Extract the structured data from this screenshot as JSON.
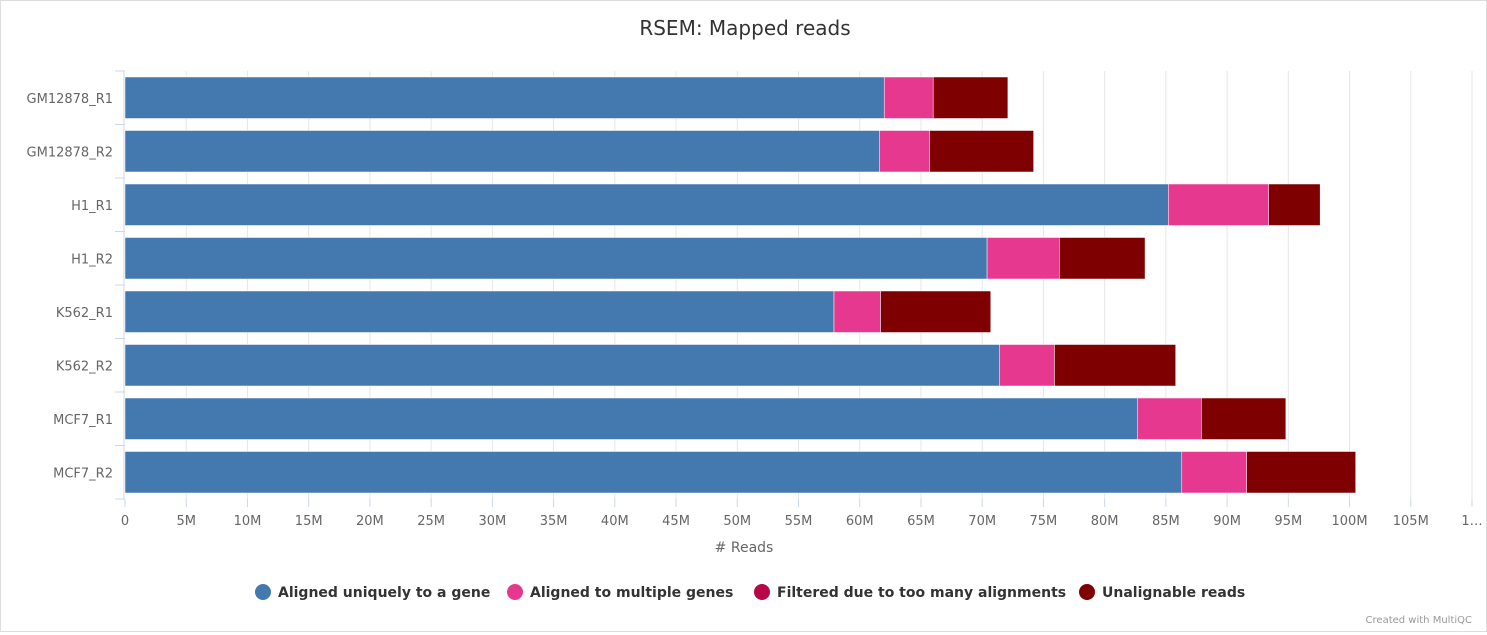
{
  "chart_data": {
    "type": "bar",
    "orientation": "horizontal",
    "stacked": true,
    "title": "RSEM: Mapped reads",
    "xlabel": "# Reads",
    "xlim": [
      0,
      110000000
    ],
    "x_ticks": [
      "0",
      "5M",
      "10M",
      "15M",
      "20M",
      "25M",
      "30M",
      "35M",
      "40M",
      "45M",
      "50M",
      "55M",
      "60M",
      "65M",
      "70M",
      "75M",
      "80M",
      "85M",
      "90M",
      "95M",
      "100M",
      "105M",
      "1…"
    ],
    "categories": [
      "GM12878_R1",
      "GM12878_R2",
      "H1_R1",
      "H1_R2",
      "K562_R1",
      "K562_R2",
      "MCF7_R1",
      "MCF7_R2"
    ],
    "series": [
      {
        "name": "Aligned uniquely to a gene",
        "color": "#4479b0",
        "values": [
          62000000,
          61600000,
          85200000,
          70400000,
          57900000,
          71400000,
          82700000,
          86300000
        ]
      },
      {
        "name": "Aligned to multiple genes",
        "color": "#e7388f",
        "values": [
          4000000,
          4100000,
          8200000,
          5900000,
          3800000,
          4500000,
          5200000,
          5300000
        ]
      },
      {
        "name": "Filtered due to too many alignments",
        "color": "#b8064b",
        "values": [
          0,
          0,
          0,
          0,
          0,
          0,
          0,
          0
        ]
      },
      {
        "name": "Unalignable reads",
        "color": "#7f0000",
        "values": [
          6100000,
          8500000,
          4200000,
          7000000,
          9000000,
          9900000,
          6900000,
          8900000
        ]
      }
    ],
    "grid": true,
    "legend": "bottom"
  },
  "credits": "Created with MultiQC"
}
